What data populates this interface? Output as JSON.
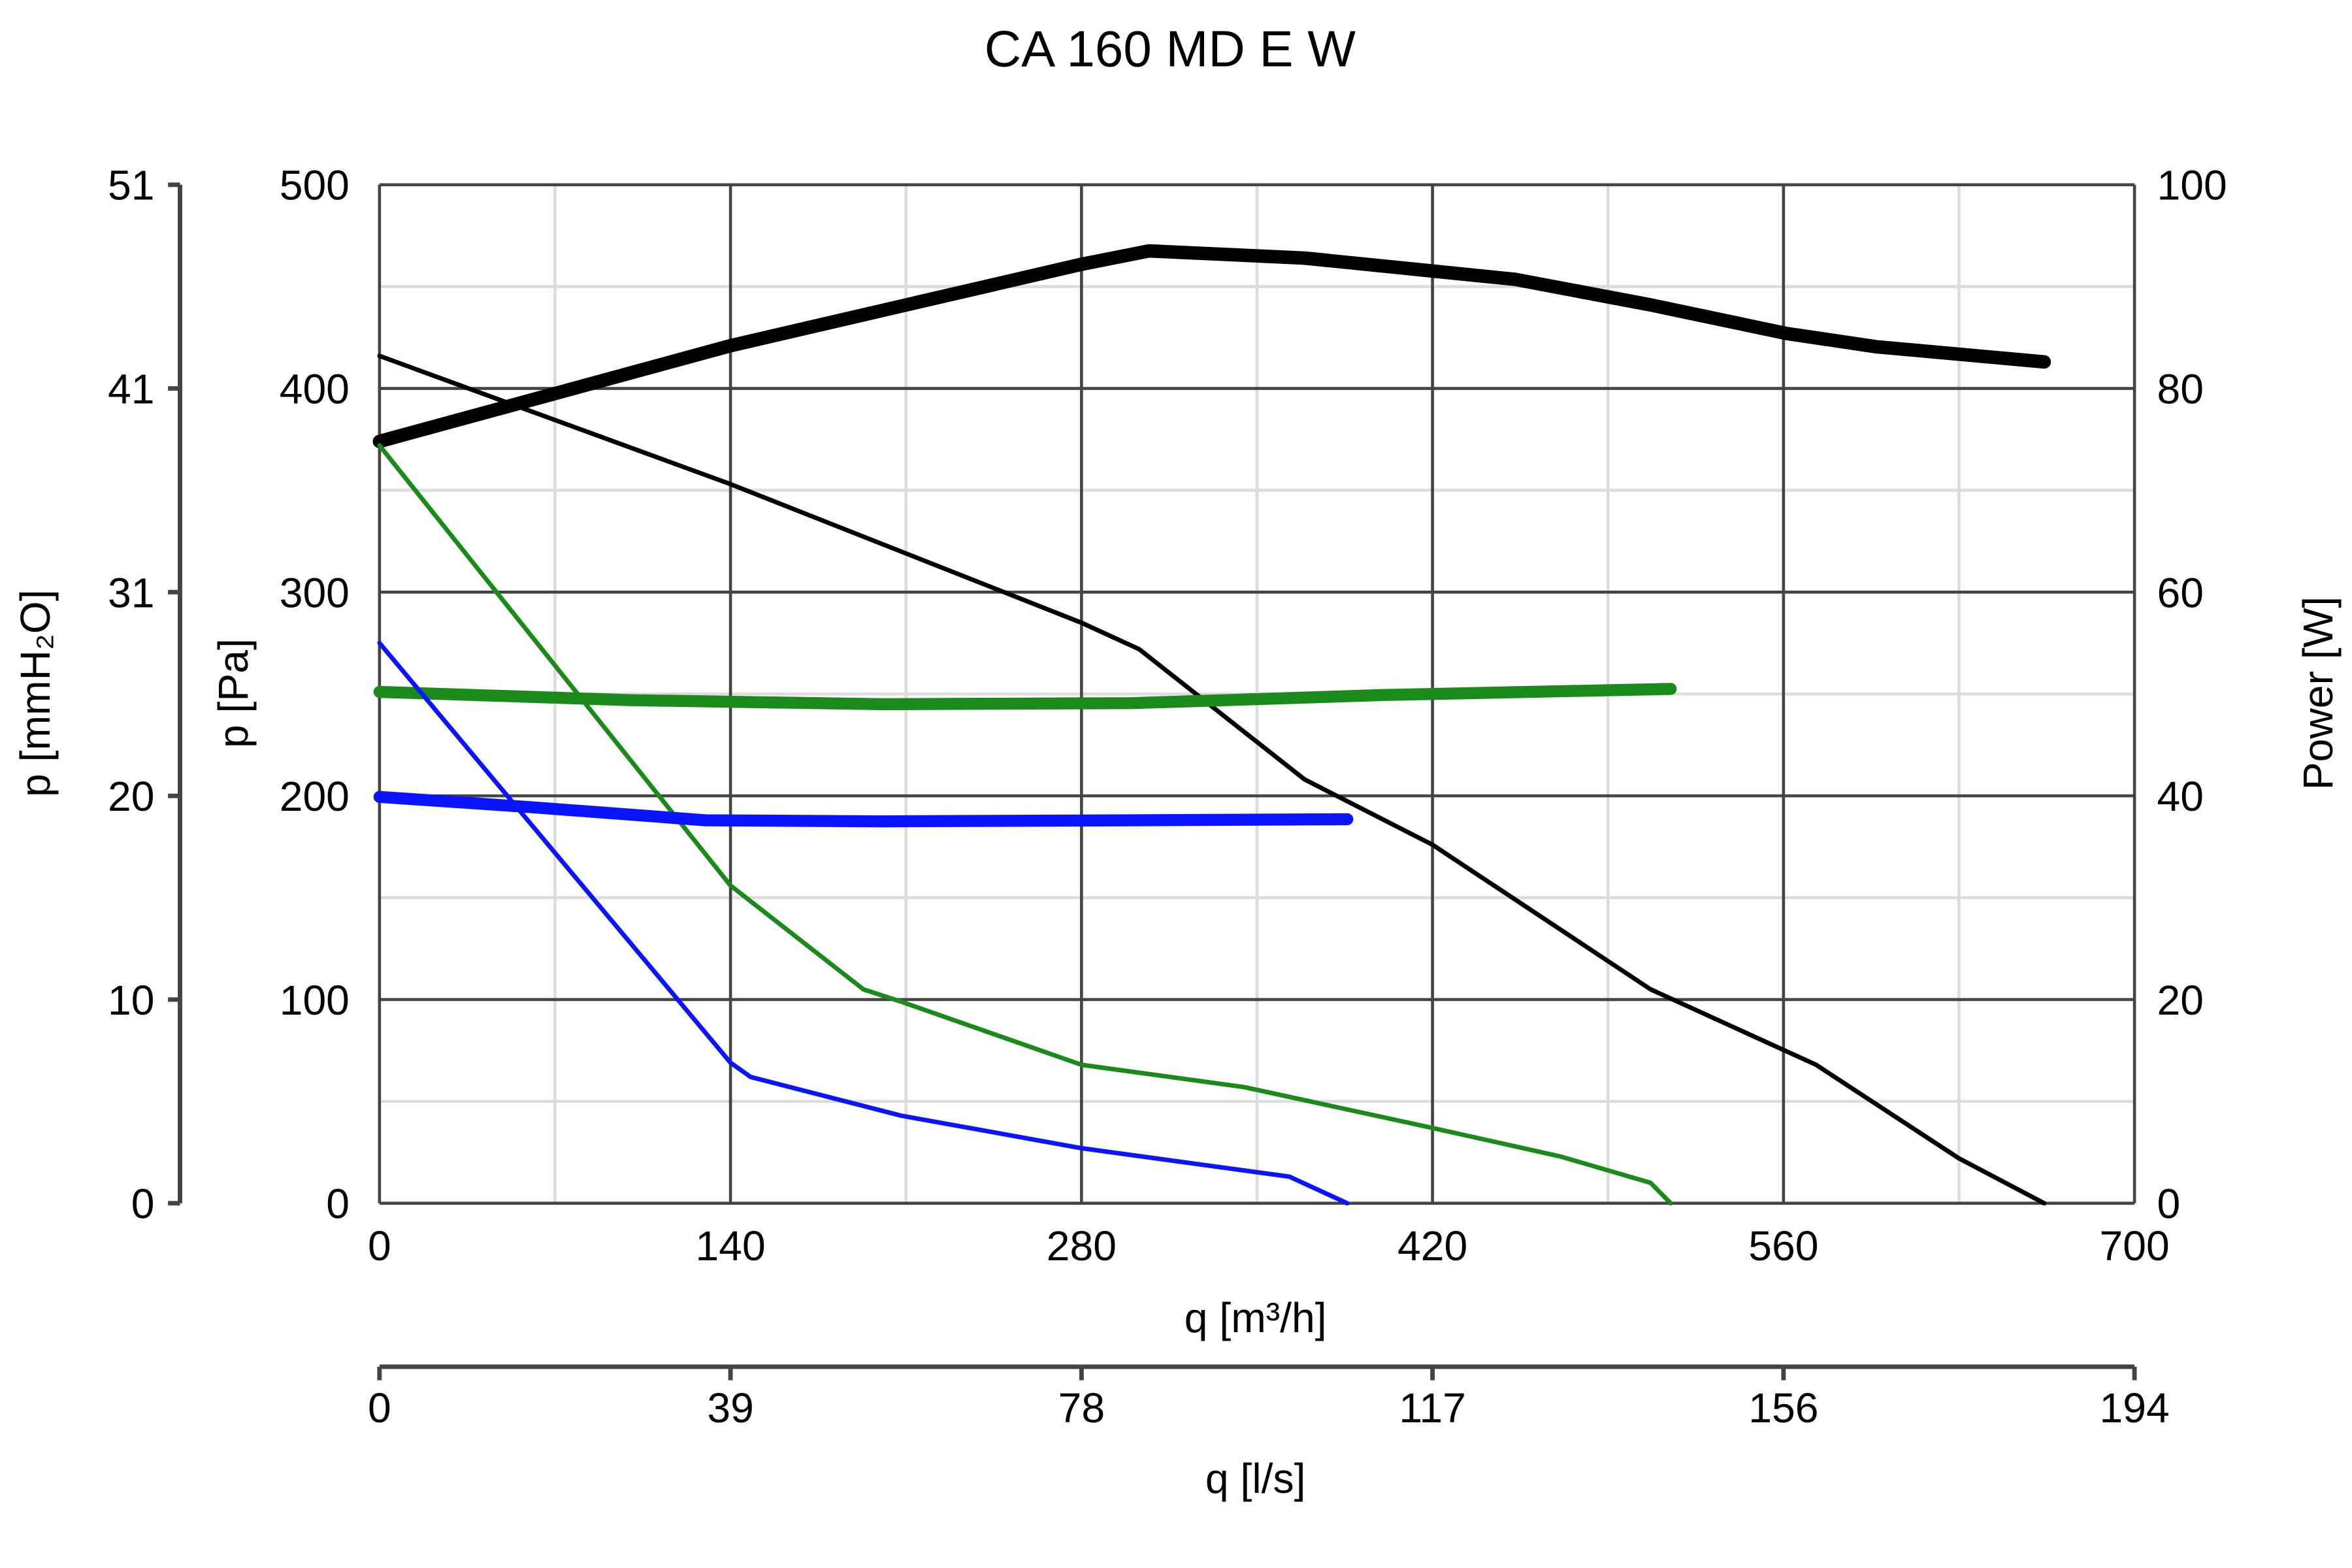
{
  "chart_data": {
    "type": "line",
    "title": "CA 160 MD E W",
    "xlabel": "q [m³/h]",
    "xlim": [
      0,
      700
    ],
    "xticks": [
      "0",
      "140",
      "280",
      "420",
      "560",
      "700"
    ],
    "x2label": "q [l/s]",
    "x2ticks": [
      "0",
      "39",
      "78",
      "117",
      "156",
      "194"
    ],
    "ylabel": "p [Pa]",
    "ylim": [
      0,
      500
    ],
    "yticks": [
      "0",
      "100",
      "200",
      "300",
      "400",
      "500"
    ],
    "y_mm_label": "p [mmH₂O]",
    "y_mm_ticks": [
      "0",
      "10",
      "20",
      "31",
      "41",
      "51"
    ],
    "y2label": "Power [W]",
    "y2lim": [
      0,
      100
    ],
    "y2ticks": [
      "0",
      "20",
      "40",
      "60",
      "80",
      "100"
    ],
    "grid": true,
    "series": [
      {
        "name": "pressure-high",
        "axis": "pressure",
        "color": "#000000",
        "width": 3,
        "x": [
          0,
          140,
          280,
          303,
          369,
          420,
          507,
          573,
          630,
          664
        ],
        "y": [
          416,
          353,
          285,
          272,
          208,
          176,
          105,
          68,
          22,
          0
        ]
      },
      {
        "name": "power-high",
        "axis": "power",
        "color": "#000000",
        "width": 9,
        "x": [
          0,
          140,
          280,
          307,
          369,
          453,
          507,
          561,
          597,
          664
        ],
        "y": [
          74.8,
          84.2,
          92.2,
          93.5,
          92.8,
          90.7,
          88.2,
          85.4,
          84.1,
          82.6
        ]
      },
      {
        "name": "pressure-medium",
        "axis": "pressure",
        "color": "#1a8a1a",
        "width": 3,
        "x": [
          0,
          140,
          193,
          208,
          280,
          345,
          420,
          471,
          507,
          515
        ],
        "y": [
          372,
          156,
          105,
          99,
          68,
          57,
          37,
          23,
          10,
          0
        ]
      },
      {
        "name": "power-medium",
        "axis": "power",
        "color": "#1a8a1a",
        "width": 8,
        "x": [
          0,
          100,
          200,
          300,
          400,
          515
        ],
        "y": [
          50.2,
          49.4,
          49.0,
          49.1,
          49.9,
          50.5
        ]
      },
      {
        "name": "pressure-low",
        "axis": "pressure",
        "color": "#0a14ff",
        "width": 3,
        "x": [
          0,
          140,
          148,
          208,
          280,
          363,
          386
        ],
        "y": [
          275,
          69,
          62,
          43,
          27,
          13,
          0
        ]
      },
      {
        "name": "power-low",
        "axis": "power",
        "color": "#0a14ff",
        "width": 8,
        "x": [
          0,
          60,
          130,
          200,
          300,
          386
        ],
        "y": [
          39.9,
          38.9,
          37.6,
          37.5,
          37.6,
          37.7
        ]
      }
    ]
  }
}
